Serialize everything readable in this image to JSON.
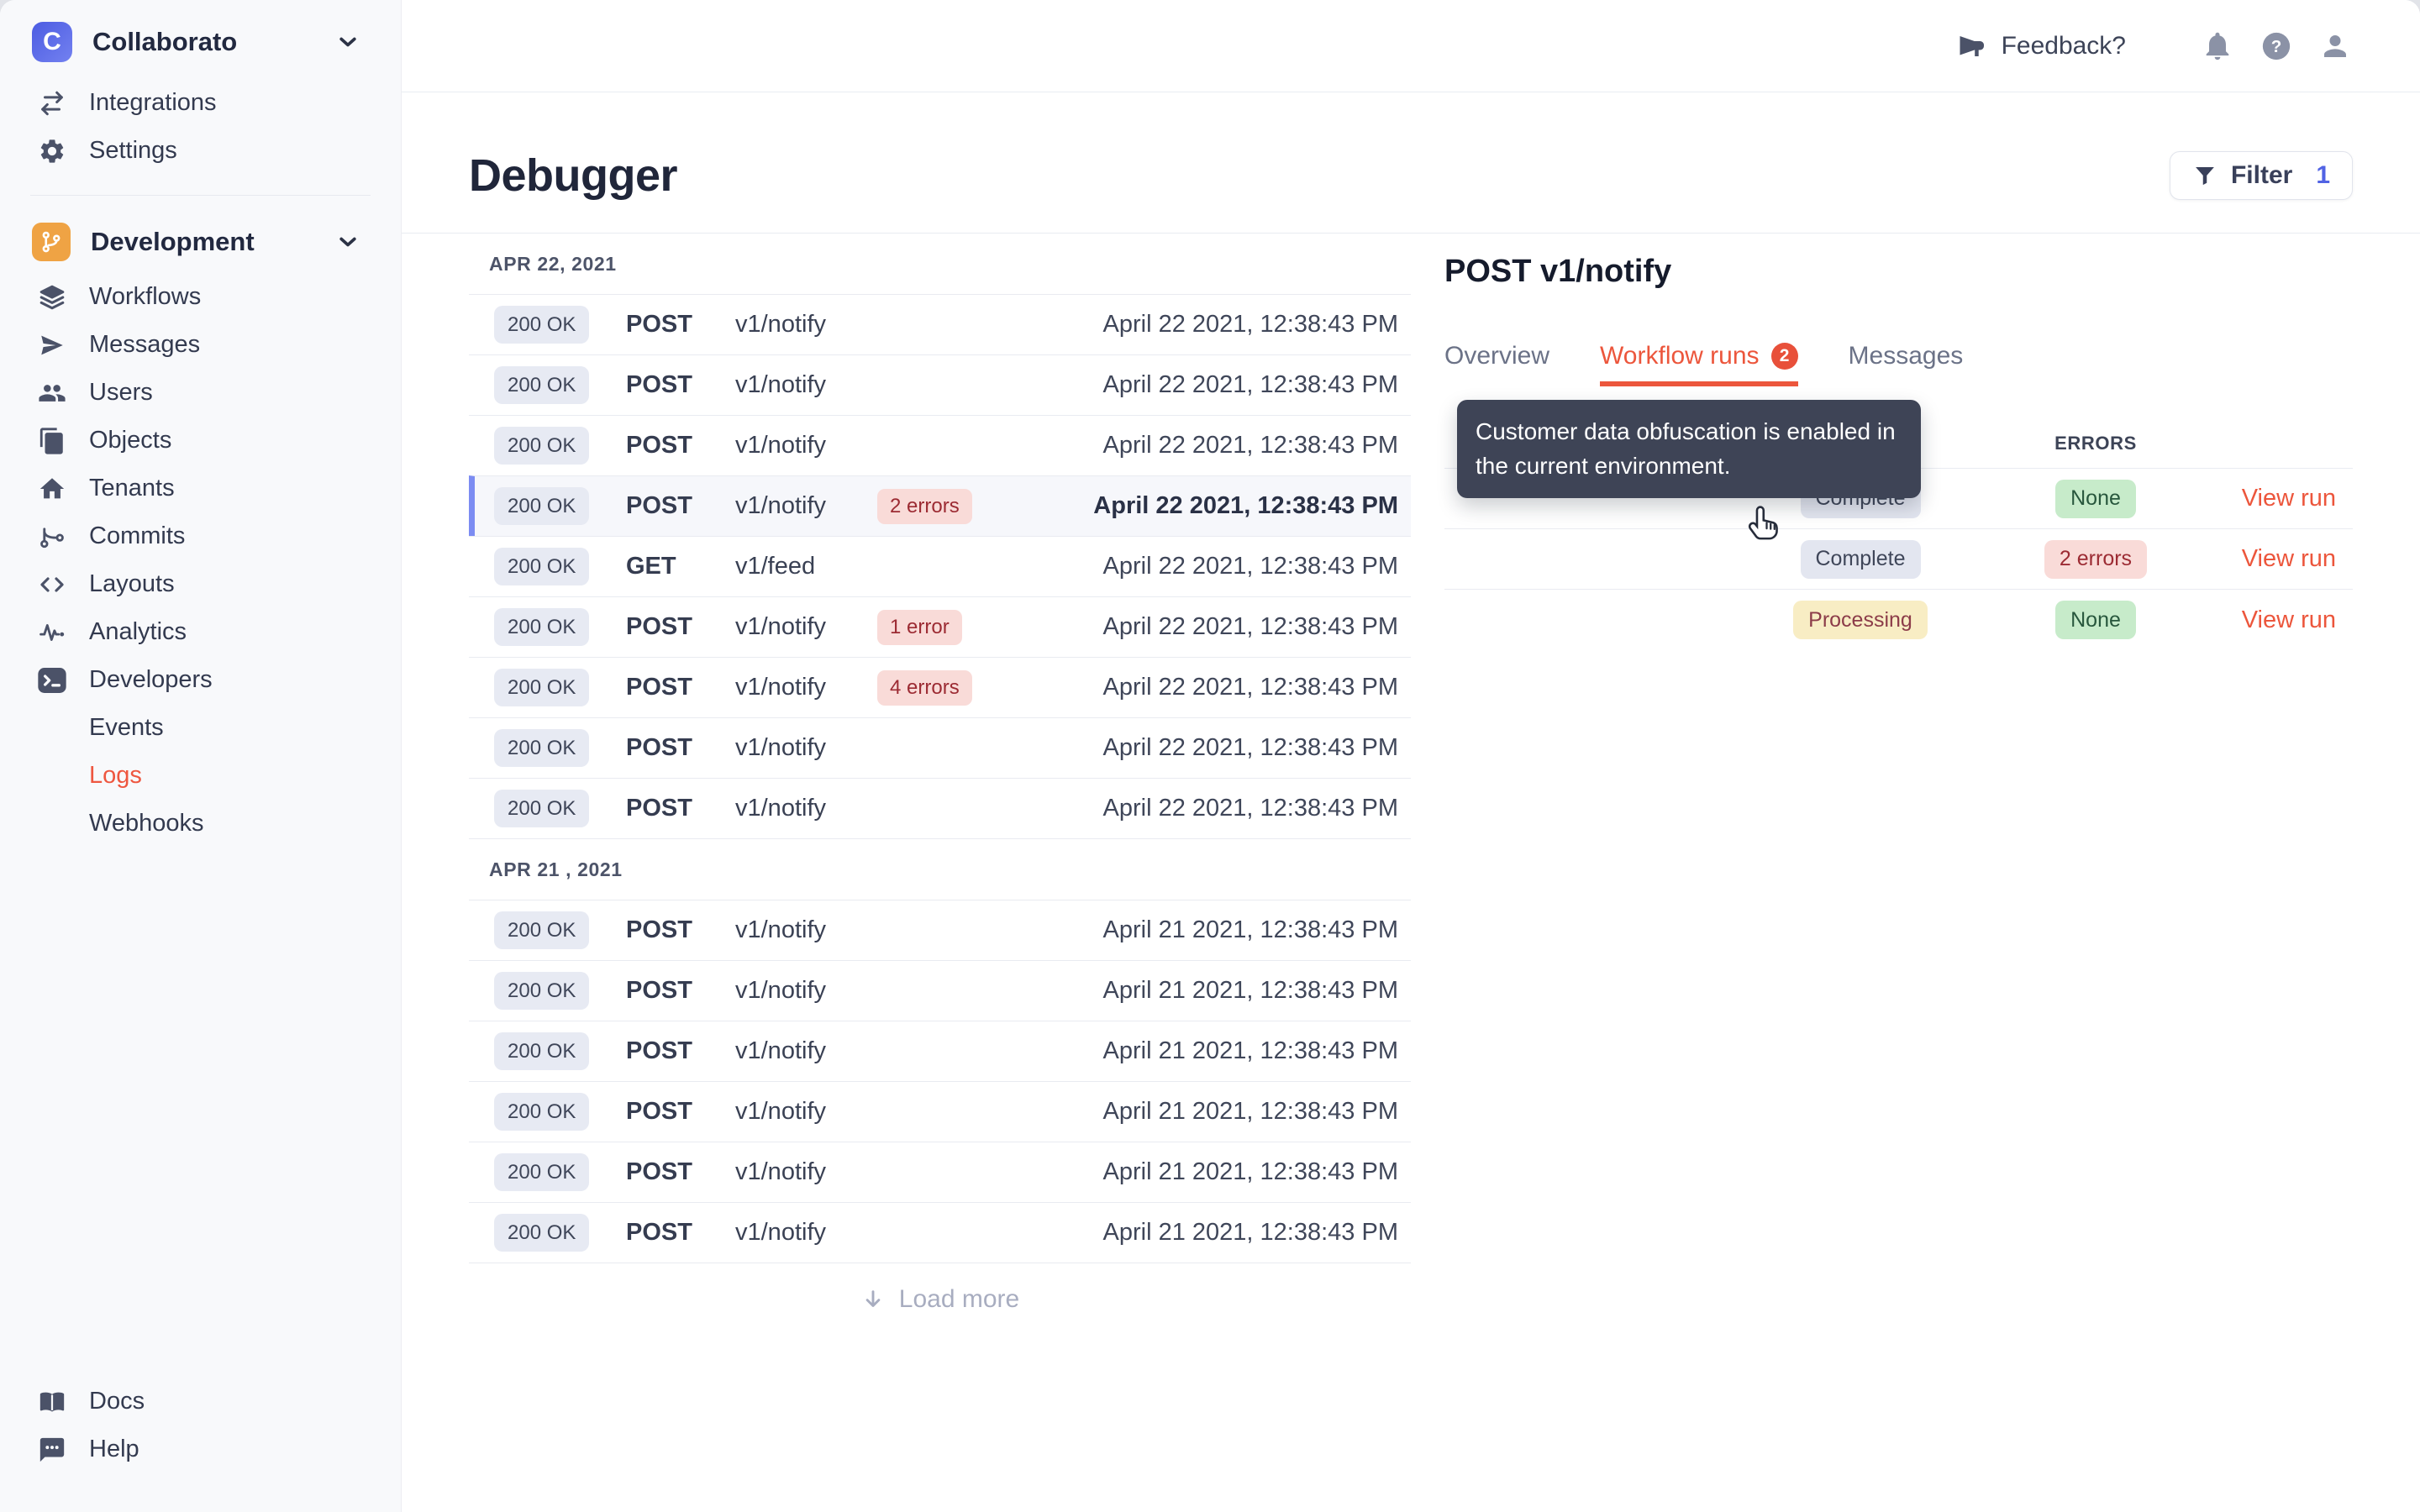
{
  "colors": {
    "accent": "#ec563c",
    "filter_count_indigo": "#5163e4",
    "selected_row_border": "#7c8cf2",
    "tooltip_bg": "#3e4456",
    "obfuscated_blob": "#4a5062",
    "badge_neutral_bg": "#e7eaf3",
    "badge_error_bg": "#f9dbd8",
    "badge_error_text": "#9c2b33",
    "badge_success_bg": "#c7ebca",
    "badge_success_text": "#28573d",
    "badge_warning_bg": "#f8edc4",
    "badge_warning_text": "#8c3c49",
    "dev_section_orange": "#efa344",
    "workspace_blue": "#4c5ce2"
  },
  "sidebar": {
    "workspace": {
      "name": "Collaborato",
      "initial": "C"
    },
    "top_items": [
      {
        "label": "Integrations",
        "icon": "integrations-icon"
      },
      {
        "label": "Settings",
        "icon": "gear-icon"
      }
    ],
    "section": {
      "label": "Development",
      "icon": "git-branch-icon"
    },
    "items": [
      {
        "label": "Workflows",
        "icon": "layers-icon"
      },
      {
        "label": "Messages",
        "icon": "send-icon"
      },
      {
        "label": "Users",
        "icon": "users-icon"
      },
      {
        "label": "Objects",
        "icon": "copy-icon"
      },
      {
        "label": "Tenants",
        "icon": "home-icon"
      },
      {
        "label": "Commits",
        "icon": "git-commit-icon"
      },
      {
        "label": "Layouts",
        "icon": "code-icon"
      },
      {
        "label": "Analytics",
        "icon": "activity-icon"
      },
      {
        "label": "Developers",
        "icon": "terminal-icon"
      },
      {
        "label": "Events",
        "icon": ""
      },
      {
        "label": "Logs",
        "icon": "",
        "active": true
      },
      {
        "label": "Webhooks",
        "icon": ""
      }
    ],
    "footer_items": [
      {
        "label": "Docs",
        "icon": "book-icon"
      },
      {
        "label": "Help",
        "icon": "chat-icon"
      }
    ]
  },
  "topbar": {
    "feedback_label": "Feedback?"
  },
  "page": {
    "title": "Debugger",
    "filter_label": "Filter",
    "filter_count": "1",
    "load_more_label": "Load more"
  },
  "log_groups": [
    {
      "date": "APR 22, 2021",
      "rows": [
        {
          "status": "200 OK",
          "method": "POST",
          "path": "v1/notify",
          "errors": "",
          "time": "April 22 2021, 12:38:43 PM"
        },
        {
          "status": "200 OK",
          "method": "POST",
          "path": "v1/notify",
          "errors": "",
          "time": "April 22 2021, 12:38:43 PM"
        },
        {
          "status": "200 OK",
          "method": "POST",
          "path": "v1/notify",
          "errors": "",
          "time": "April 22 2021, 12:38:43 PM"
        },
        {
          "status": "200 OK",
          "method": "POST",
          "path": "v1/notify",
          "errors": "2 errors",
          "time": "April 22 2021, 12:38:43 PM",
          "selected": true
        },
        {
          "status": "200 OK",
          "method": "GET",
          "path": "v1/feed",
          "errors": "",
          "time": "April 22 2021, 12:38:43 PM"
        },
        {
          "status": "200 OK",
          "method": "POST",
          "path": "v1/notify",
          "errors": "1 error",
          "time": "April 22 2021, 12:38:43 PM"
        },
        {
          "status": "200 OK",
          "method": "POST",
          "path": "v1/notify",
          "errors": "4 errors",
          "time": "April 22 2021, 12:38:43 PM"
        },
        {
          "status": "200 OK",
          "method": "POST",
          "path": "v1/notify",
          "errors": "",
          "time": "April 22 2021, 12:38:43 PM"
        },
        {
          "status": "200 OK",
          "method": "POST",
          "path": "v1/notify",
          "errors": "",
          "time": "April 22 2021, 12:38:43 PM"
        }
      ]
    },
    {
      "date": "APR 21 , 2021",
      "rows": [
        {
          "status": "200 OK",
          "method": "POST",
          "path": "v1/notify",
          "errors": "",
          "time": "April 21 2021, 12:38:43 PM"
        },
        {
          "status": "200 OK",
          "method": "POST",
          "path": "v1/notify",
          "errors": "",
          "time": "April 21 2021, 12:38:43 PM"
        },
        {
          "status": "200 OK",
          "method": "POST",
          "path": "v1/notify",
          "errors": "",
          "time": "April 21 2021, 12:38:43 PM"
        },
        {
          "status": "200 OK",
          "method": "POST",
          "path": "v1/notify",
          "errors": "",
          "time": "April 21 2021, 12:38:43 PM"
        },
        {
          "status": "200 OK",
          "method": "POST",
          "path": "v1/notify",
          "errors": "",
          "time": "April 21 2021, 12:38:43 PM"
        },
        {
          "status": "200 OK",
          "method": "POST",
          "path": "v1/notify",
          "errors": "",
          "time": "April 21 2021, 12:38:43 PM"
        }
      ]
    }
  ],
  "detail": {
    "title": "POST v1/notify",
    "tabs": [
      {
        "label": "Overview"
      },
      {
        "label": "Workflow runs",
        "badge": "2",
        "active": true
      },
      {
        "label": "Messages"
      }
    ],
    "tooltip": "Customer data obfuscation is enabled in the current environment.",
    "runs_table": {
      "errors_header": "ERRORS",
      "rows": [
        {
          "status": "Complete",
          "status_kind": "neutral",
          "errors": "None",
          "errors_kind": "success",
          "action": "View run"
        },
        {
          "status": "Complete",
          "status_kind": "neutral",
          "errors": "2 errors",
          "errors_kind": "error",
          "action": "View run"
        },
        {
          "status": "Processing",
          "status_kind": "warning",
          "errors": "None",
          "errors_kind": "success",
          "action": "View run"
        }
      ]
    }
  }
}
